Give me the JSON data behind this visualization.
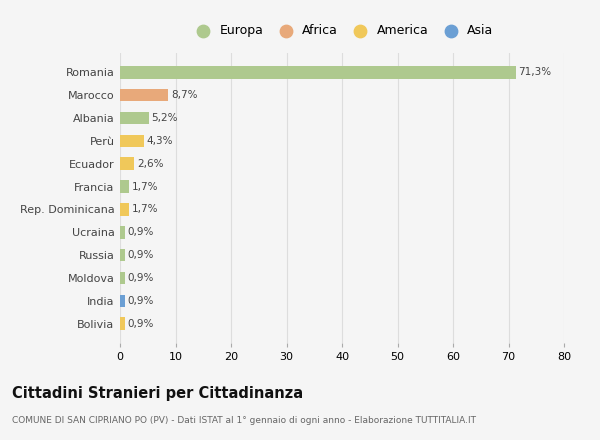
{
  "countries": [
    "Romania",
    "Marocco",
    "Albania",
    "Perù",
    "Ecuador",
    "Francia",
    "Rep. Dominicana",
    "Ucraina",
    "Russia",
    "Moldova",
    "India",
    "Bolivia"
  ],
  "values": [
    71.3,
    8.7,
    5.2,
    4.3,
    2.6,
    1.7,
    1.7,
    0.9,
    0.9,
    0.9,
    0.9,
    0.9
  ],
  "labels": [
    "71,3%",
    "8,7%",
    "5,2%",
    "4,3%",
    "2,6%",
    "1,7%",
    "1,7%",
    "0,9%",
    "0,9%",
    "0,9%",
    "0,9%",
    "0,9%"
  ],
  "colors": [
    "#aec98e",
    "#e8a97a",
    "#aec98e",
    "#f0c85a",
    "#f0c85a",
    "#aec98e",
    "#f0c85a",
    "#aec98e",
    "#aec98e",
    "#aec98e",
    "#6b9fd4",
    "#f0c85a"
  ],
  "legend_labels": [
    "Europa",
    "Africa",
    "America",
    "Asia"
  ],
  "legend_colors": [
    "#aec98e",
    "#e8a97a",
    "#f0c85a",
    "#6b9fd4"
  ],
  "title": "Cittadini Stranieri per Cittadinanza",
  "subtitle": "COMUNE DI SAN CIPRIANO PO (PV) - Dati ISTAT al 1° gennaio di ogni anno - Elaborazione TUTTITALIA.IT",
  "xlim": [
    0,
    80
  ],
  "xticks": [
    0,
    10,
    20,
    30,
    40,
    50,
    60,
    70,
    80
  ],
  "bg_color": "#f5f5f5",
  "grid_color": "#dddddd",
  "bar_height": 0.55
}
